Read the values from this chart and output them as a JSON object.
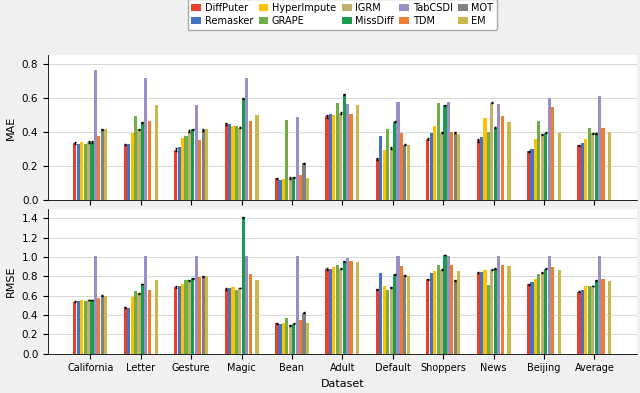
{
  "methods": [
    "DiffPuter",
    "Remasker",
    "HyperImpute",
    "GRAPE",
    "IGRM",
    "MissDiff",
    "TabCSDI",
    "TDM",
    "MOT",
    "EM"
  ],
  "colors": [
    "#e8402a",
    "#4472c4",
    "#ffc000",
    "#70ad47",
    "#bfb06e",
    "#1a9b50",
    "#9b8ec4",
    "#ed7d31",
    "#808080",
    "#c9b84c"
  ],
  "datasets": [
    "California",
    "Letter",
    "Gesture",
    "Magic",
    "Bean",
    "Adult",
    "Default",
    "Shoppers",
    "News",
    "Beijing",
    "Average"
  ],
  "mae_data": {
    "DiffPuter": [
      0.335,
      0.325,
      0.295,
      0.445,
      0.127,
      0.49,
      0.24,
      0.355,
      0.35,
      0.285,
      0.32
    ],
    "Remasker": [
      0.33,
      0.33,
      0.31,
      0.445,
      0.12,
      0.505,
      0.375,
      0.39,
      0.37,
      0.3,
      0.335
    ],
    "HyperImpute": [
      0.34,
      0.395,
      0.365,
      0.435,
      0.122,
      0.5,
      0.295,
      0.435,
      0.48,
      0.355,
      0.355
    ],
    "GRAPE": [
      0.33,
      0.49,
      0.375,
      0.432,
      0.47,
      0.57,
      0.415,
      0.57,
      0.4,
      0.465,
      0.425
    ],
    "IGRM": [
      0.34,
      0.415,
      0.405,
      0.425,
      0.13,
      0.51,
      0.305,
      0.395,
      0.57,
      0.385,
      0.39
    ],
    "MissDiff": [
      0.34,
      0.455,
      0.415,
      0.595,
      0.133,
      0.62,
      0.46,
      0.555,
      0.425,
      0.395,
      0.39
    ],
    "TabCSDI": [
      0.76,
      0.715,
      0.555,
      0.715,
      0.488,
      0.56,
      0.575,
      0.575,
      0.56,
      0.6,
      0.61
    ],
    "TDM": [
      0.375,
      0.465,
      0.35,
      0.465,
      0.148,
      0.505,
      0.395,
      0.4,
      0.49,
      0.545,
      0.42
    ],
    "MOT": [
      0.415,
      0.0,
      0.41,
      0.0,
      0.215,
      0.0,
      0.325,
      0.395,
      0.0,
      0.0,
      0.0
    ],
    "EM": [
      0.415,
      0.555,
      0.415,
      0.5,
      0.128,
      0.555,
      0.325,
      0.385,
      0.46,
      0.395,
      0.4
    ]
  },
  "rmse_data": {
    "DiffPuter": [
      0.54,
      0.48,
      0.69,
      0.67,
      0.315,
      0.875,
      0.665,
      0.77,
      0.84,
      0.72,
      0.64
    ],
    "Remasker": [
      0.545,
      0.475,
      0.7,
      0.68,
      0.31,
      0.88,
      0.84,
      0.84,
      0.845,
      0.745,
      0.66
    ],
    "HyperImpute": [
      0.555,
      0.59,
      0.72,
      0.695,
      0.32,
      0.895,
      0.705,
      0.855,
      0.87,
      0.77,
      0.7
    ],
    "GRAPE": [
      0.545,
      0.645,
      0.76,
      0.66,
      0.37,
      0.915,
      0.66,
      0.92,
      0.71,
      0.82,
      0.7
    ],
    "IGRM": [
      0.555,
      0.625,
      0.76,
      0.68,
      0.295,
      0.88,
      0.685,
      0.87,
      0.87,
      0.84,
      0.7
    ],
    "MissDiff": [
      0.555,
      0.72,
      0.78,
      1.41,
      0.31,
      0.955,
      0.82,
      1.02,
      0.88,
      0.88,
      0.76
    ],
    "TabCSDI": [
      1.01,
      1.01,
      1.01,
      1.01,
      1.015,
      0.985,
      1.01,
      1.01,
      1.01,
      1.01,
      1.01
    ],
    "TDM": [
      0.58,
      0.655,
      0.79,
      0.82,
      0.35,
      0.96,
      0.905,
      0.915,
      0.92,
      0.9,
      0.775
    ],
    "MOT": [
      0.6,
      0.0,
      0.8,
      0.0,
      0.425,
      0.0,
      0.81,
      0.76,
      0.0,
      0.0,
      0.0
    ],
    "EM": [
      0.6,
      0.76,
      0.8,
      0.76,
      0.32,
      0.945,
      0.805,
      0.855,
      0.905,
      0.865,
      0.755
    ]
  },
  "mae_yerr": {
    "DiffPuter": [
      0.005,
      0.005,
      0.008,
      0.005,
      0.004,
      0.007,
      0.005,
      0.006,
      0.008,
      0.005,
      0.005
    ],
    "Remasker": [
      0.0,
      0.0,
      0.0,
      0.0,
      0.0,
      0.0,
      0.0,
      0.0,
      0.0,
      0.0,
      0.0
    ],
    "HyperImpute": [
      0.0,
      0.0,
      0.0,
      0.0,
      0.0,
      0.0,
      0.0,
      0.0,
      0.0,
      0.0,
      0.0
    ],
    "GRAPE": [
      0.0,
      0.0,
      0.0,
      0.0,
      0.0,
      0.0,
      0.0,
      0.0,
      0.0,
      0.0,
      0.0
    ],
    "IGRM": [
      0.004,
      0.004,
      0.004,
      0.004,
      0.004,
      0.004,
      0.004,
      0.004,
      0.004,
      0.004,
      0.004
    ],
    "MissDiff": [
      0.004,
      0.004,
      0.004,
      0.004,
      0.004,
      0.004,
      0.004,
      0.004,
      0.004,
      0.004,
      0.004
    ],
    "TabCSDI": [
      0.0,
      0.0,
      0.0,
      0.0,
      0.0,
      0.0,
      0.0,
      0.0,
      0.0,
      0.0,
      0.0
    ],
    "TDM": [
      0.0,
      0.0,
      0.0,
      0.0,
      0.0,
      0.0,
      0.0,
      0.0,
      0.0,
      0.0,
      0.0
    ],
    "MOT": [
      0.004,
      0.0,
      0.004,
      0.0,
      0.004,
      0.0,
      0.004,
      0.004,
      0.0,
      0.0,
      0.0
    ],
    "EM": [
      0.0,
      0.0,
      0.0,
      0.0,
      0.0,
      0.0,
      0.0,
      0.0,
      0.0,
      0.0,
      0.0
    ]
  },
  "rmse_yerr": {
    "DiffPuter": [
      0.006,
      0.006,
      0.008,
      0.006,
      0.006,
      0.009,
      0.006,
      0.006,
      0.008,
      0.006,
      0.006
    ],
    "Remasker": [
      0.0,
      0.0,
      0.0,
      0.0,
      0.0,
      0.0,
      0.0,
      0.0,
      0.0,
      0.0,
      0.0
    ],
    "HyperImpute": [
      0.0,
      0.0,
      0.0,
      0.0,
      0.0,
      0.0,
      0.0,
      0.0,
      0.0,
      0.0,
      0.0
    ],
    "GRAPE": [
      0.0,
      0.0,
      0.0,
      0.0,
      0.0,
      0.0,
      0.0,
      0.0,
      0.0,
      0.0,
      0.0
    ],
    "IGRM": [
      0.004,
      0.004,
      0.004,
      0.004,
      0.004,
      0.004,
      0.004,
      0.004,
      0.004,
      0.004,
      0.004
    ],
    "MissDiff": [
      0.004,
      0.004,
      0.004,
      0.004,
      0.004,
      0.004,
      0.004,
      0.004,
      0.004,
      0.004,
      0.004
    ],
    "TabCSDI": [
      0.0,
      0.0,
      0.0,
      0.0,
      0.0,
      0.0,
      0.0,
      0.0,
      0.0,
      0.0,
      0.0
    ],
    "TDM": [
      0.0,
      0.0,
      0.0,
      0.0,
      0.0,
      0.0,
      0.0,
      0.0,
      0.0,
      0.0,
      0.0
    ],
    "MOT": [
      0.004,
      0.0,
      0.004,
      0.0,
      0.004,
      0.0,
      0.004,
      0.004,
      0.0,
      0.0,
      0.0
    ],
    "EM": [
      0.0,
      0.0,
      0.0,
      0.0,
      0.0,
      0.0,
      0.0,
      0.0,
      0.0,
      0.0,
      0.0
    ]
  },
  "mae_ylim": [
    0.0,
    0.85
  ],
  "rmse_ylim": [
    0.0,
    1.5
  ],
  "mae_yticks": [
    0.0,
    0.2,
    0.4,
    0.6,
    0.8
  ],
  "rmse_yticks": [
    0.0,
    0.2,
    0.4,
    0.6,
    0.8,
    1.0,
    1.2,
    1.4
  ],
  "fig_bgcolor": "#f0f0f0",
  "ax_bgcolor": "#ffffff"
}
